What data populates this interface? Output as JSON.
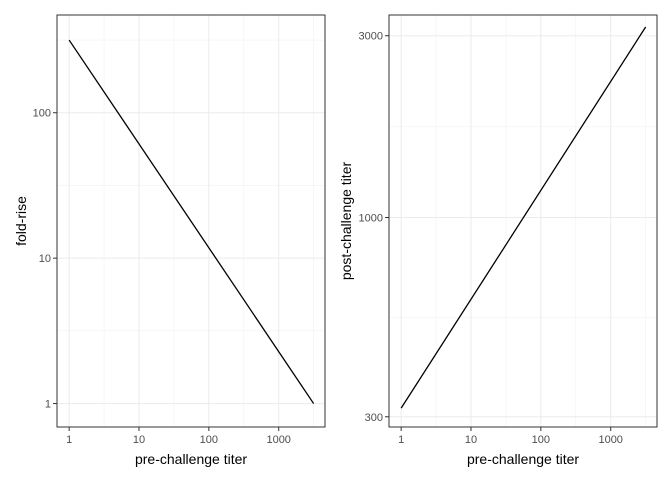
{
  "chart_data": [
    {
      "type": "line",
      "title": "",
      "xlabel": "pre-challenge titer",
      "ylabel": "fold-rise",
      "x_scale": "log10",
      "y_scale": "log10",
      "xlim": [
        0.67,
        4600
      ],
      "ylim": [
        0.69,
        470
      ],
      "x_ticks": [
        1,
        10,
        100,
        1000
      ],
      "x_tick_labels": [
        "1",
        "10",
        "100",
        "1000"
      ],
      "y_ticks": [
        1,
        10,
        100
      ],
      "y_tick_labels": [
        "1",
        "10",
        "100"
      ],
      "grid": true,
      "series": [
        {
          "x": [
            1,
            3162
          ],
          "y": [
            316,
            1
          ]
        }
      ]
    },
    {
      "type": "line",
      "title": "",
      "xlabel": "pre-challenge titer",
      "ylabel": "post-challenge titer",
      "x_scale": "log10",
      "y_scale": "log10",
      "xlim": [
        0.67,
        4600
      ],
      "ylim": [
        282,
        3400
      ],
      "x_ticks": [
        1,
        10,
        100,
        1000
      ],
      "x_tick_labels": [
        "1",
        "10",
        "100",
        "1000"
      ],
      "y_ticks": [
        300,
        1000,
        3000
      ],
      "y_tick_labels": [
        "300",
        "1000",
        "3000"
      ],
      "grid": true,
      "series": [
        {
          "x": [
            1,
            3162
          ],
          "y": [
            316,
            3162
          ]
        }
      ]
    }
  ]
}
